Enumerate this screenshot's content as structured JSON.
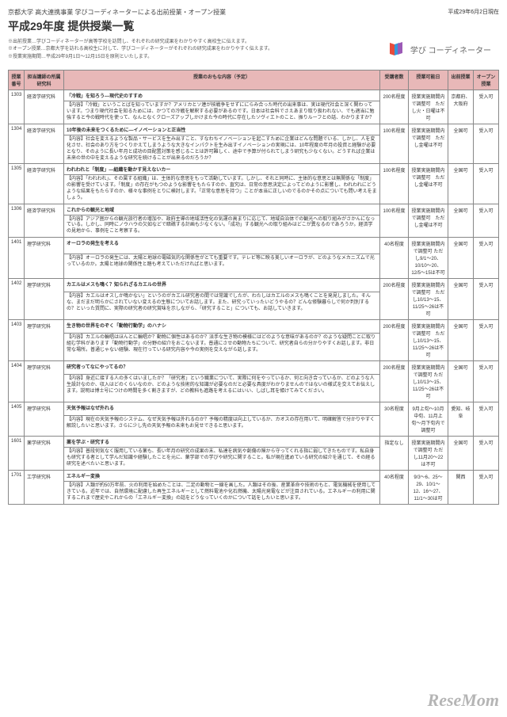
{
  "page": {
    "date": "平成29年6月2日現在",
    "subtitle": "京都大学 高大連携事業 学びコーディネーターによる出前授業・オープン授業",
    "title": "平成29年度 提供授業一覧",
    "notes": [
      "※出前授業…学びコーディネーターが高等学校を訪問し、それぞれの研究成果をわかりやすく高校生に伝えます。",
      "※オープン授業…京都大学を訪れる高校生に対して、学びコーディネーターがそれぞれの研究成果をわかりやすく伝えます。",
      "※授業実施期間…平成29年9月1日〜12月15日を原則といたします。"
    ]
  },
  "brand": {
    "text": "学び コーディネーター"
  },
  "headers": [
    "授業番号",
    "担当講師の所属研究科",
    "授業のおもな内容（予定）",
    "受講者数",
    "授業可能日",
    "出前授業",
    "オープン授業"
  ],
  "rows": [
    {
      "num": "1303",
      "dept": "経済学研究科",
      "title": "「冷戦」を知ろう―現代史のすすめ",
      "body": "【内容】「冷戦」ということばを知っていますか？アメリカとソ連が核戦争をせずににらみ合った時代の出来事は、実は現代社会と深く関わっています。つまり現代社会を知るためには、かつての冷戦を解釈する必要があるのです。日本は社会科でさえあまり取り扱われない、でも適当に勉強すると今の戦時代を使って、なんとなくクローズアップしかけまた今の時代に存在したソヴィエトのこと、振りルーフとの話、わかりますか？",
      "cap": "200名程度",
      "date": "授業実施期間内で調整可　ただし火・日曜は不可",
      "area": "京都府、大阪府",
      "open": "受入可"
    },
    {
      "num": "1304",
      "dept": "経済学研究科",
      "title": "10年後の未来をつくるために―イノベーションと正当性",
      "body": "【内容】社会を変えるような製品・サービスを生み出すこと、すなわちイノベーションを起こすために企業はどんな問題でいる、しかし、人を変化させ、社会のあり方をつくりかえてしまうような大きなインパクトを生み出すイノベーションの実現には、10年程度の年月の投資と経験が必要となり、そのように長い年月と成功の目配置対策を感じることは許可難しく、途中で予算が付られてしまう研究も少なくない。どうすれば企業は未来の世の中を変えるような研究を続けることが出来るのだろうか？",
      "cap": "100名程度",
      "date": "授業実施期間内で調整可　ただし金曜は不可",
      "area": "全国可",
      "open": "受入可"
    },
    {
      "num": "1305",
      "dept": "経済学研究科",
      "title": "われわれと「制度」―組織を動かす見えないカー",
      "body": "【内容】「われわれ」、その属する組織」は、主体的な意思をもって活動しています。しかし、それと同時に、主体的な意思とは無関係な「制度」の影響を受けています。「制度」の存在がもつのような影響をもたらすのか、直究は、日常の意思決定によってどのように影響し、われわれにどうような結果をもたらすのか、様々な事例をとりに検討します。「正常な意思を持つ」ことが本当に正しいのでるのかその点についても問い考えをましょう。",
      "cap": "100名程度",
      "date": "授業実施期間内で調整可　ただし金曜は不可",
      "area": "全国可",
      "open": "受入可"
    },
    {
      "num": "1306",
      "dept": "経済学研究科",
      "title": "これからの観光と地域",
      "body": "【内容】アジア圏からの観光旅行者の増加や、政府主導の地域活性化の気運の高まりに応じて、地域自治体での観光への取り組みがさかんになっている。しかし、同時にノウハウの欠如などで暗礁する計画も少なくない。「成功」する観光への取り組みはどこが異なるのであろうか。経済学の見地から、事例をこと考察する。",
      "cap": "100名程度",
      "date": "授業実施期間内で調整可　ただし金曜は不可",
      "area": "全国可",
      "open": "受入可"
    },
    {
      "num": "1401",
      "dept": "理学研究科",
      "title": "オーロラの発生を考える",
      "body": "【内容】オーロラの発生には、太陽と地球の電磁気的な関係性がとても重要です。テレビ等に映る美しいオーロラが、どのようなメカニズムで光っているのか。太陽と地球の関係性と踏も考えていただければと思います。",
      "cap": "40名程度",
      "date": "授業実施期間内で調整可 ただし9/1〜20、10/10〜20、12/5〜15は不可",
      "area": "全国可",
      "open": "受入可"
    },
    {
      "num": "1402",
      "dept": "理学研究科",
      "title": "カエルはメスも鳴く？知られざるカエルの世界",
      "body": "【内容】カエルはオスしか鳴かない」というのがカエル研究者の間では常識でしたが、わたしはカエルのメスも鳴くことを発見しました。そんな、まだまだ明らかにされていない変えるの生態についてお話します。また、研究っていったいどうやるの？どんな修験暮らしで何か判別するの？といった質問に、実際の研究者の研究賞味を示しながら、「研究すること」についても、お話していきます。",
      "cap": "200名程度",
      "date": "授業実施期間内で調整可　ただし10/13〜15、11/25〜26は不可",
      "area": "全国可",
      "open": "受入可"
    },
    {
      "num": "1403",
      "dept": "理学研究科",
      "title": "生き物の世界をのぞく「動物行動学」のハナシ",
      "body": "【内容】カエルの輪唱はほんとに輪唱か？動物に個性はあるのか？派手な生き物の模様にはどのような意味があるのか？のような疑問ことに取り組む学科があります「動物行動学」の分野の紹介をおこないます。普通にさせの動物たちについて、研究者自らの分かりやすくお話します。非日常な場所。普通じゃない経験、現在行っている研究内容や今の実例を交えながら話します。",
      "cap": "200名程度",
      "date": "授業実施期間内で調整可　ただし10/13〜15、11/25〜26は不可",
      "area": "全国可",
      "open": "受入可"
    },
    {
      "num": "1404",
      "dept": "理学研究科",
      "title": "研究者ってなにやってるの？",
      "body": "【内容】身近に接する人の多くはいましたか？「研究者」という職業について、実際に何をやっているか、何と向き合っているか、どのような人生設計なのか、収入はどのくらいなのか、どのような技術的な知識が必要なのだと必要な具度がわかりませんのではないの様式を交えてお伝えします。説明は博士号につけの時間を多く割きますが、どの教科も進路を考えるにはいい、しばし耳を傾けてみてください。",
      "cap": "200名程度",
      "date": "授業実施期間内で調整可 ただし10/13〜15、11/25〜26は不可",
      "area": "全国可",
      "open": "受入可"
    },
    {
      "num": "1405",
      "dept": "理学研究科",
      "title": "天気予報はなぜ外れる",
      "body": "【内容】現在の天気予報のシステム、なぜ天気予報は外れるのか？予報の精度は向上しているか、カオスの存在用いて、明確解答で分かりやすく解説したいと思います。さらに少し先の天気予報の未来もお見せできると思います。",
      "cap": "30名程度",
      "date": "9月上旬〜10月中旬、11月上旬〜月下旬内で調整可",
      "area": "愛知、岐阜",
      "open": "受入可"
    },
    {
      "num": "1601",
      "dept": "薬学研究科",
      "title": "薬を学ぶ・研究する",
      "body": "【内容】普段何気なく服用している薬も、長い年月の研究の成果の末、私達を病気や創傷の険から守ってくれる指に弱してきたものです。私自身も研究する者として学んだ知識や経験したことを元に、薬学部での学びや研究に関すること。私が現在進めている研究の紹介を通じて、その経る研究を述べたいと思います。",
      "cap": "指定なし",
      "date": "授業実施期間内で調整可 ただし11月20〜22は不可",
      "area": "全国可",
      "open": "受入可"
    },
    {
      "num": "1701",
      "dept": "工学研究科",
      "title": "エネルギー変換",
      "body": "【内容】人類が約50万年前、火の利用を始めたことは、二足の動物と一線を画した。人類はその後、産業革命や技術のもと、電気機械を使用してきている。近年では、自然環境に配慮した再生エネルギーとして燃料電池や化石燃機、太陽光発電などが注目されている。エネルギーの利用に関するこれまで歴史やこれからの「エネルギー変換」の話をどうなっていくのかについて話をしたいと思います。",
      "cap": "40名程度",
      "date": "9/3〜6、25〜29、10/1〜12、16〜27、11/1〜30は可",
      "area": "関西",
      "open": "受入可"
    }
  ],
  "watermark": "ReseMom"
}
